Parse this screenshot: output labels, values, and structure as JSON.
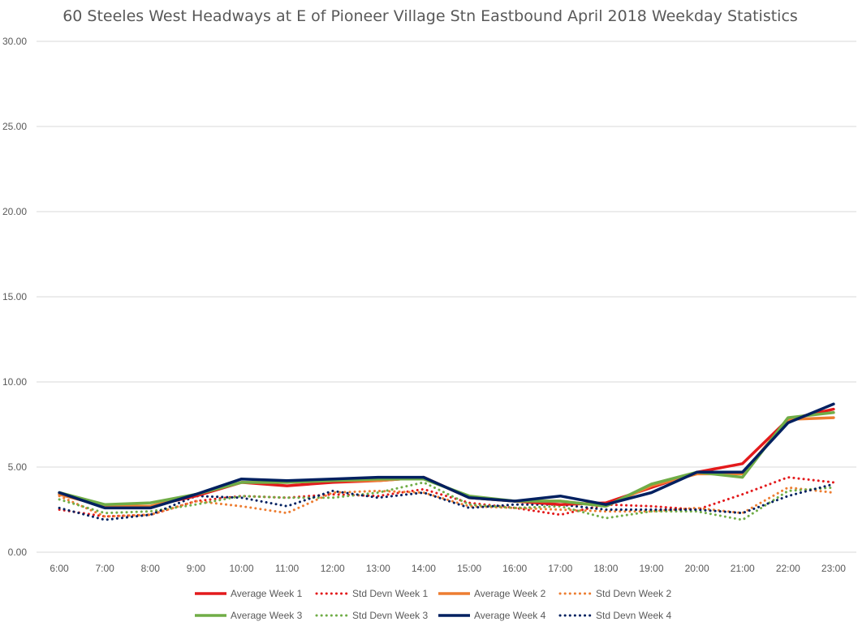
{
  "chart_data": {
    "type": "line",
    "title": "60 Steeles West Headways at E of Pioneer Village Stn Eastbound April 2018 Weekday Statistics",
    "xlabel": "",
    "ylabel": "",
    "ylim": [
      0,
      30
    ],
    "yticks": [
      "0.00",
      "5.00",
      "10.00",
      "15.00",
      "20.00",
      "25.00",
      "30.00"
    ],
    "grid": true,
    "legend_position": "bottom",
    "categories": [
      "6:00",
      "7:00",
      "8:00",
      "9:00",
      "10:00",
      "11:00",
      "12:00",
      "13:00",
      "14:00",
      "15:00",
      "16:00",
      "17:00",
      "18:00",
      "19:00",
      "20:00",
      "21:00",
      "22:00",
      "23:00"
    ],
    "series": [
      {
        "name": "Average Week 1",
        "color": "#e31a1c",
        "style": "solid",
        "values": [
          3.4,
          2.7,
          2.7,
          3.3,
          4.1,
          3.9,
          4.1,
          4.2,
          4.4,
          3.2,
          3.0,
          2.8,
          2.9,
          3.8,
          4.7,
          5.2,
          7.8,
          8.4
        ]
      },
      {
        "name": "Std Devn Week 1",
        "color": "#e31a1c",
        "style": "dotted",
        "values": [
          2.5,
          2.1,
          2.2,
          3.0,
          3.3,
          3.2,
          3.4,
          3.3,
          3.7,
          2.9,
          2.6,
          2.2,
          2.8,
          2.7,
          2.5,
          3.4,
          4.4,
          4.1
        ]
      },
      {
        "name": "Average Week 2",
        "color": "#ed7d31",
        "style": "solid",
        "values": [
          3.4,
          2.7,
          2.7,
          3.4,
          4.1,
          4.1,
          4.2,
          4.2,
          4.4,
          3.2,
          3.0,
          3.0,
          2.7,
          3.9,
          4.6,
          4.6,
          7.8,
          7.9
        ]
      },
      {
        "name": "Std Devn Week 2",
        "color": "#ed7d31",
        "style": "dotted",
        "values": [
          3.3,
          2.1,
          2.2,
          3.0,
          2.7,
          2.3,
          3.5,
          3.6,
          3.5,
          2.7,
          2.6,
          2.5,
          2.4,
          2.4,
          2.6,
          2.3,
          3.8,
          3.5
        ]
      },
      {
        "name": "Average Week 3",
        "color": "#70ad47",
        "style": "solid",
        "values": [
          3.5,
          2.8,
          2.9,
          3.4,
          4.1,
          4.1,
          4.2,
          4.3,
          4.3,
          3.3,
          3.0,
          3.0,
          2.7,
          4.0,
          4.7,
          4.4,
          7.9,
          8.2
        ]
      },
      {
        "name": "Std Devn Week 3",
        "color": "#70ad47",
        "style": "dotted",
        "values": [
          3.1,
          2.3,
          2.4,
          2.8,
          3.3,
          3.2,
          3.2,
          3.5,
          4.1,
          2.8,
          2.6,
          2.7,
          2.0,
          2.4,
          2.4,
          1.9,
          3.6,
          3.8
        ]
      },
      {
        "name": "Average Week 4",
        "color": "#002060",
        "style": "solid",
        "values": [
          3.5,
          2.6,
          2.6,
          3.4,
          4.3,
          4.2,
          4.3,
          4.4,
          4.4,
          3.2,
          3.0,
          3.3,
          2.8,
          3.5,
          4.7,
          4.7,
          7.6,
          8.7
        ]
      },
      {
        "name": "Std Devn Week 4",
        "color": "#002060",
        "style": "dotted",
        "values": [
          2.6,
          1.9,
          2.2,
          3.3,
          3.2,
          2.7,
          3.6,
          3.2,
          3.5,
          2.6,
          2.8,
          2.8,
          2.5,
          2.5,
          2.5,
          2.3,
          3.3,
          4.0
        ]
      }
    ]
  }
}
